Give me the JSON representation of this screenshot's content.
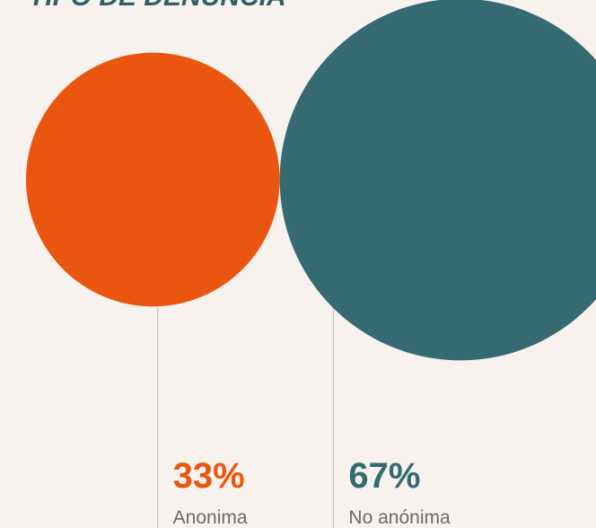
{
  "chart_data": {
    "type": "bubble",
    "title": "TIPO DE DENUNCIA",
    "categories": [
      "Anonima",
      "No anónima"
    ],
    "values": [
      33,
      67
    ],
    "value_labels": [
      "33%",
      "67%"
    ],
    "colors": [
      "#ea560f",
      "#356a73"
    ]
  }
}
